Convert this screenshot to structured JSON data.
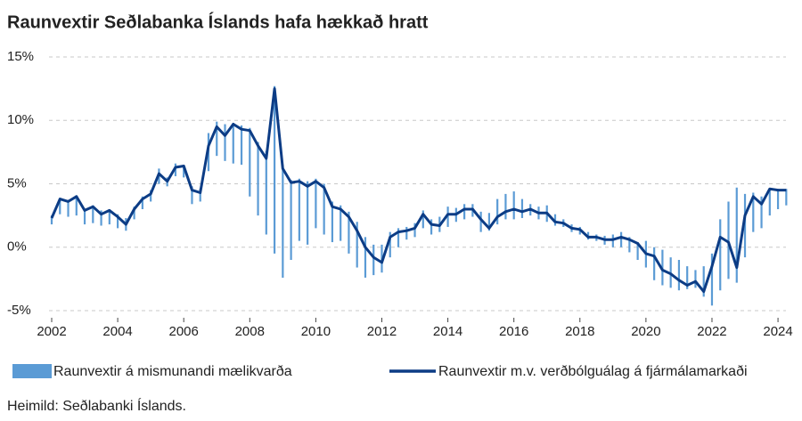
{
  "chart_data": {
    "type": "line",
    "title": "Raunvextir Seðlabanka Íslands hafa hækkað hratt",
    "source": "Heimild: Seðlabanki Íslands.",
    "xlim": [
      2002,
      2024.5
    ],
    "xticks": [
      2002,
      2004,
      2006,
      2008,
      2010,
      2012,
      2014,
      2016,
      2018,
      2020,
      2022,
      2024
    ],
    "ylim": [
      -5,
      15
    ],
    "yticks": [
      {
        "value": 15,
        "label": "15%"
      },
      {
        "value": 10,
        "label": "10%"
      },
      {
        "value": 5,
        "label": "5%"
      },
      {
        "value": 0,
        "label": "0%"
      },
      {
        "value": -5,
        "label": "-5%"
      }
    ],
    "grid": true,
    "x": [
      2002,
      2002.25,
      2002.5,
      2002.75,
      2003,
      2003.25,
      2003.5,
      2003.75,
      2004,
      2004.25,
      2004.5,
      2004.75,
      2005,
      2005.25,
      2005.5,
      2005.75,
      2006,
      2006.25,
      2006.5,
      2006.75,
      2007,
      2007.25,
      2007.5,
      2007.75,
      2008,
      2008.25,
      2008.5,
      2008.75,
      2009,
      2009.25,
      2009.5,
      2009.75,
      2010,
      2010.25,
      2010.5,
      2010.75,
      2011,
      2011.25,
      2011.5,
      2011.75,
      2012,
      2012.25,
      2012.5,
      2012.75,
      2013,
      2013.25,
      2013.5,
      2013.75,
      2014,
      2014.25,
      2014.5,
      2014.75,
      2015,
      2015.25,
      2015.5,
      2015.75,
      2016,
      2016.25,
      2016.5,
      2016.75,
      2017,
      2017.25,
      2017.5,
      2017.75,
      2018,
      2018.25,
      2018.5,
      2018.75,
      2019,
      2019.25,
      2019.5,
      2019.75,
      2020,
      2020.25,
      2020.5,
      2020.75,
      2021,
      2021.25,
      2021.5,
      2021.75,
      2022,
      2022.25,
      2022.5,
      2022.75,
      2023,
      2023.25,
      2023.5,
      2023.75,
      2024,
      2024.25
    ],
    "series": [
      {
        "name": "Raunvextir á mismunandi mælikvarða",
        "color": "#5b9bd5",
        "kind": "range",
        "low": [
          1.8,
          2.6,
          2.4,
          2.5,
          1.8,
          1.9,
          1.7,
          1.8,
          1.5,
          1.3,
          2.2,
          3.0,
          3.6,
          5.0,
          4.8,
          5.6,
          5.5,
          3.4,
          3.6,
          6.0,
          7.2,
          6.8,
          6.6,
          6.5,
          4.0,
          2.5,
          1.0,
          -0.5,
          -2.4,
          -1.0,
          0.5,
          0.2,
          1.5,
          1.0,
          0.4,
          0.5,
          -0.5,
          -1.6,
          -2.4,
          -2.2,
          -2.0,
          -0.8,
          0.0,
          0.6,
          0.8,
          1.5,
          1.0,
          1.2,
          1.6,
          2.0,
          2.2,
          2.4,
          1.2,
          1.3,
          1.8,
          2.2,
          2.2,
          2.3,
          2.5,
          2.2,
          2.0,
          1.7,
          1.6,
          1.2,
          1.0,
          0.6,
          0.5,
          0.2,
          0.0,
          0.0,
          -0.4,
          -1.0,
          -1.6,
          -2.6,
          -3.0,
          -3.2,
          -3.4,
          -3.3,
          -3.2,
          -3.9,
          -4.6,
          -3.4,
          -2.5,
          -2.8,
          -0.8,
          1.2,
          1.5,
          2.5,
          3.0,
          3.3
        ],
        "high": [
          2.5,
          3.9,
          3.7,
          4.1,
          3.0,
          3.3,
          2.9,
          3.0,
          2.6,
          2.3,
          3.2,
          4.0,
          4.5,
          6.2,
          5.5,
          6.6,
          6.5,
          4.8,
          4.6,
          9.0,
          9.9,
          9.7,
          9.8,
          9.6,
          9.4,
          8.3,
          7.6,
          12.7,
          6.5,
          5.3,
          5.4,
          5.2,
          5.4,
          5.0,
          3.6,
          3.3,
          2.8,
          2.0,
          0.8,
          0.2,
          0.2,
          1.2,
          1.5,
          1.6,
          1.9,
          2.9,
          2.2,
          2.4,
          3.2,
          3.1,
          3.4,
          3.4,
          2.8,
          2.7,
          3.8,
          4.2,
          4.4,
          3.8,
          3.4,
          3.2,
          3.3,
          2.6,
          2.2,
          1.8,
          1.6,
          1.2,
          1.0,
          0.9,
          1.0,
          1.2,
          0.8,
          0.4,
          0.5,
          0.0,
          -0.2,
          -0.8,
          -1.0,
          -1.5,
          -1.8,
          -1.5,
          -0.5,
          2.2,
          3.6,
          4.7,
          4.2,
          4.3,
          4.0,
          4.6,
          4.6,
          4.6
        ]
      },
      {
        "name": "Raunvextir m.v. verðbólguálag á fjármálamarkaði",
        "color": "#0c3c85",
        "kind": "line",
        "values": [
          2.3,
          3.8,
          3.6,
          4.0,
          2.9,
          3.2,
          2.6,
          2.9,
          2.4,
          1.8,
          3.0,
          3.8,
          4.2,
          5.8,
          5.2,
          6.3,
          6.4,
          4.5,
          4.3,
          8.0,
          9.5,
          8.8,
          9.7,
          9.3,
          9.2,
          8.0,
          7.0,
          12.5,
          6.2,
          5.1,
          5.2,
          4.8,
          5.2,
          4.7,
          3.2,
          3.0,
          2.4,
          1.3,
          0.0,
          -0.8,
          -1.2,
          0.8,
          1.2,
          1.3,
          1.5,
          2.6,
          1.8,
          1.7,
          2.6,
          2.6,
          3.0,
          3.0,
          2.2,
          1.5,
          2.4,
          2.8,
          3.0,
          2.8,
          3.0,
          2.7,
          2.7,
          2.0,
          1.9,
          1.5,
          1.4,
          0.8,
          0.8,
          0.6,
          0.6,
          0.8,
          0.6,
          0.3,
          -0.5,
          -0.7,
          -1.8,
          -2.1,
          -2.6,
          -3.0,
          -2.7,
          -3.5,
          -1.5,
          0.8,
          0.4,
          -1.6,
          2.5,
          4.0,
          3.4,
          4.6,
          4.5,
          4.5
        ]
      }
    ]
  }
}
